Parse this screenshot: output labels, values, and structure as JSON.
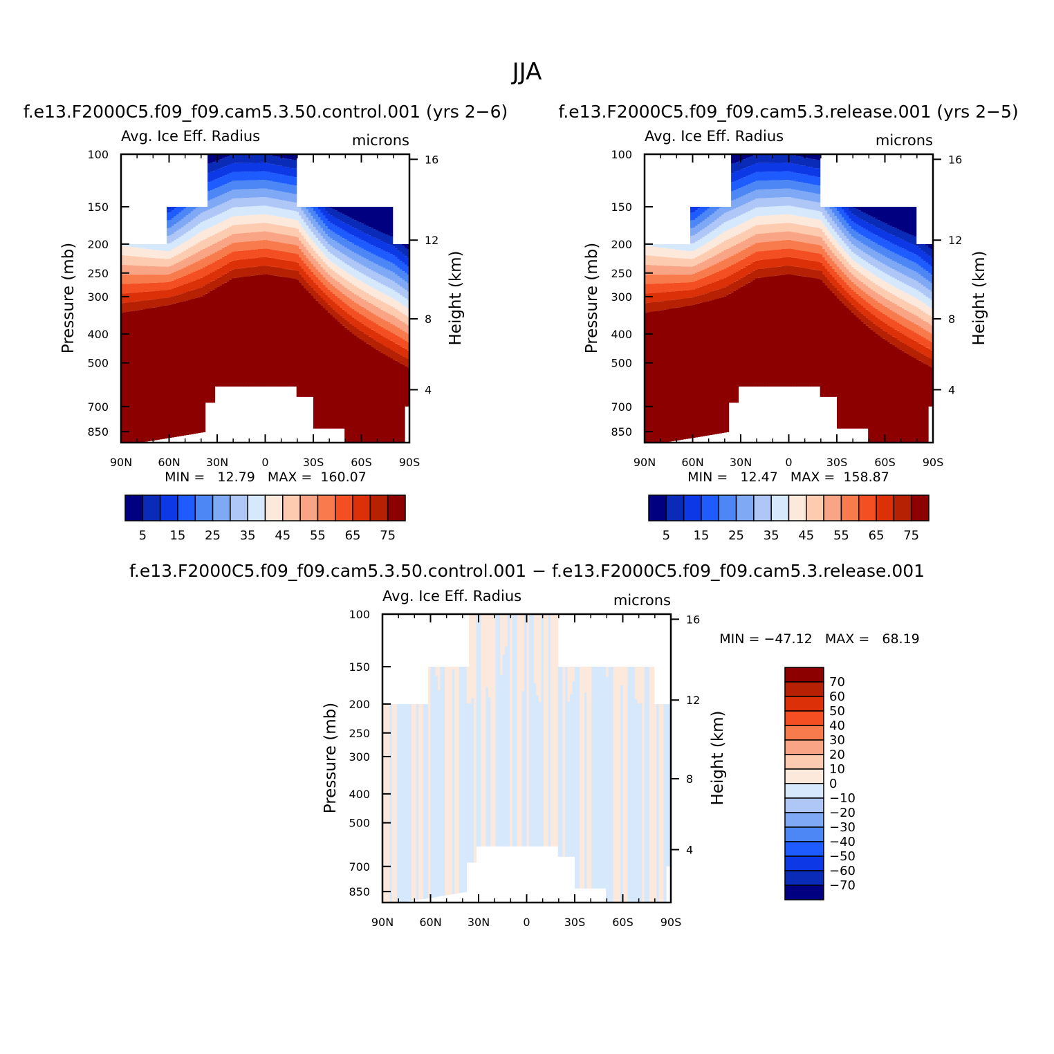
{
  "chart_data": [
    {
      "type": "heatmap",
      "season": "JJA",
      "case_title": "f.e13.F2000C5.f09_f09.cam5.3.50.control.001 (yrs 2−6)",
      "variable_label": "Avg. Ice Eff. Radius",
      "units_label": "microns",
      "ylabel": "Pressure (mb)",
      "ylabel_right": "Height (km)",
      "xlim": [
        90,
        -90
      ],
      "ylim": [
        100,
        925
      ],
      "x_ticks": [
        {
          "v": 90,
          "label": "90N"
        },
        {
          "v": 60,
          "label": "60N"
        },
        {
          "v": 30,
          "label": "30N"
        },
        {
          "v": 0,
          "label": "0"
        },
        {
          "v": -30,
          "label": "30S"
        },
        {
          "v": -60,
          "label": "60S"
        },
        {
          "v": -90,
          "label": "90S"
        }
      ],
      "y_ticks": [
        {
          "v": 100,
          "label": "100"
        },
        {
          "v": 150,
          "label": "150"
        },
        {
          "v": 200,
          "label": "200"
        },
        {
          "v": 250,
          "label": "250"
        },
        {
          "v": 300,
          "label": "300"
        },
        {
          "v": 400,
          "label": "400"
        },
        {
          "v": 500,
          "label": "500"
        },
        {
          "v": 700,
          "label": "700"
        },
        {
          "v": 850,
          "label": "850"
        }
      ],
      "height_ticks": [
        {
          "v": 4,
          "label": "4",
          "p": 615
        },
        {
          "v": 8,
          "label": "8",
          "p": 356
        },
        {
          "v": 12,
          "label": "12",
          "p": 194
        },
        {
          "v": 16,
          "label": "16",
          "p": 104
        }
      ],
      "min_text": "MIN =   12.79   MAX =  160.07",
      "levels": [
        5,
        10,
        15,
        20,
        25,
        30,
        35,
        40,
        45,
        50,
        55,
        60,
        65,
        70,
        75
      ],
      "colorbar_labels": [
        "5",
        "15",
        "25",
        "35",
        "45",
        "55",
        "65",
        "75"
      ],
      "colorbar_colors": [
        "#000080",
        "#0a2bb8",
        "#0d38e6",
        "#1f5cff",
        "#4d86f5",
        "#7fa8f5",
        "#afc7f7",
        "#d6e8fb",
        "#fde9dc",
        "#fccbb0",
        "#f9a585",
        "#f77b4c",
        "#f34f22",
        "#dc3108",
        "#b62104",
        "#8c0000"
      ]
    },
    {
      "type": "heatmap",
      "season": "JJA",
      "case_title": "f.e13.F2000C5.f09_f09.cam5.3.release.001 (yrs 2−5)",
      "variable_label": "Avg. Ice Eff. Radius",
      "units_label": "microns",
      "ylabel": "Pressure (mb)",
      "ylabel_right": "Height (km)",
      "xlim": [
        90,
        -90
      ],
      "ylim": [
        100,
        925
      ],
      "x_ticks": [
        {
          "v": 90,
          "label": "90N"
        },
        {
          "v": 60,
          "label": "60N"
        },
        {
          "v": 30,
          "label": "30N"
        },
        {
          "v": 0,
          "label": "0"
        },
        {
          "v": -30,
          "label": "30S"
        },
        {
          "v": -60,
          "label": "60S"
        },
        {
          "v": -90,
          "label": "90S"
        }
      ],
      "y_ticks": [
        {
          "v": 100,
          "label": "100"
        },
        {
          "v": 150,
          "label": "150"
        },
        {
          "v": 200,
          "label": "200"
        },
        {
          "v": 250,
          "label": "250"
        },
        {
          "v": 300,
          "label": "300"
        },
        {
          "v": 400,
          "label": "400"
        },
        {
          "v": 500,
          "label": "500"
        },
        {
          "v": 700,
          "label": "700"
        },
        {
          "v": 850,
          "label": "850"
        }
      ],
      "height_ticks": [
        {
          "v": 4,
          "label": "4",
          "p": 615
        },
        {
          "v": 8,
          "label": "8",
          "p": 356
        },
        {
          "v": 12,
          "label": "12",
          "p": 194
        },
        {
          "v": 16,
          "label": "16",
          "p": 104
        }
      ],
      "min_text": "MIN =   12.47   MAX =  158.87",
      "levels": [
        5,
        10,
        15,
        20,
        25,
        30,
        35,
        40,
        45,
        50,
        55,
        60,
        65,
        70,
        75
      ],
      "colorbar_labels": [
        "5",
        "15",
        "25",
        "35",
        "45",
        "55",
        "65",
        "75"
      ],
      "colorbar_colors": [
        "#000080",
        "#0a2bb8",
        "#0d38e6",
        "#1f5cff",
        "#4d86f5",
        "#7fa8f5",
        "#afc7f7",
        "#d6e8fb",
        "#fde9dc",
        "#fccbb0",
        "#f9a585",
        "#f77b4c",
        "#f34f22",
        "#dc3108",
        "#b62104",
        "#8c0000"
      ]
    },
    {
      "type": "heatmap",
      "case_title": "f.e13.F2000C5.f09_f09.cam5.3.50.control.001 − f.e13.F2000C5.f09_f09.cam5.3.release.001",
      "variable_label": "Avg. Ice Eff. Radius",
      "units_label": "microns",
      "ylabel": "Pressure (mb)",
      "ylabel_right": "Height (km)",
      "xlim": [
        90,
        -90
      ],
      "ylim": [
        100,
        925
      ],
      "x_ticks": [
        {
          "v": 90,
          "label": "90N"
        },
        {
          "v": 60,
          "label": "60N"
        },
        {
          "v": 30,
          "label": "30N"
        },
        {
          "v": 0,
          "label": "0"
        },
        {
          "v": -30,
          "label": "30S"
        },
        {
          "v": -60,
          "label": "60S"
        },
        {
          "v": -90,
          "label": "90S"
        }
      ],
      "y_ticks": [
        {
          "v": 100,
          "label": "100"
        },
        {
          "v": 150,
          "label": "150"
        },
        {
          "v": 200,
          "label": "200"
        },
        {
          "v": 250,
          "label": "250"
        },
        {
          "v": 300,
          "label": "300"
        },
        {
          "v": 400,
          "label": "400"
        },
        {
          "v": 500,
          "label": "500"
        },
        {
          "v": 700,
          "label": "700"
        },
        {
          "v": 850,
          "label": "850"
        }
      ],
      "height_ticks": [
        {
          "v": 4,
          "label": "4",
          "p": 615
        },
        {
          "v": 8,
          "label": "8",
          "p": 356
        },
        {
          "v": 12,
          "label": "12",
          "p": 194
        },
        {
          "v": 16,
          "label": "16",
          "p": 104
        }
      ],
      "min_text": "MIN = −47.12   MAX =   68.19",
      "levels": [
        70,
        60,
        50,
        40,
        30,
        20,
        10,
        0,
        -10,
        -20,
        -30,
        -40,
        -50,
        -60,
        -70
      ],
      "colorbar_labels": [
        "70",
        "60",
        "50",
        "40",
        "30",
        "20",
        "10",
        "0",
        "−10",
        "−20",
        "−30",
        "−40",
        "−50",
        "−60",
        "−70"
      ],
      "colorbar_colors": [
        "#8c0000",
        "#b62104",
        "#dc3108",
        "#f34f22",
        "#f77b4c",
        "#f9a585",
        "#fccbb0",
        "#fde9dc",
        "#d6e8fb",
        "#afc7f7",
        "#7fa8f5",
        "#4d86f5",
        "#1f5cff",
        "#0d38e6",
        "#0a2bb8",
        "#000080"
      ]
    }
  ],
  "figure": {
    "title": "JJA"
  }
}
